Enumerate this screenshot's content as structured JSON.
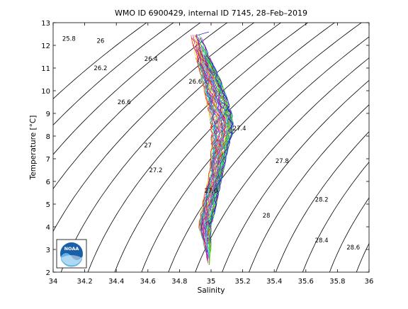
{
  "chart_data": {
    "type": "line",
    "title": "WMO ID 6900429, internal ID 7145, 28–Feb–2019",
    "xlabel": "Salinity",
    "ylabel": "Temperature [°C]",
    "xlim": [
      34,
      36
    ],
    "ylim": [
      2,
      13
    ],
    "xticks": [
      "34",
      "34.2",
      "34.4",
      "34.6",
      "34.8",
      "35",
      "35.2",
      "35.4",
      "35.6",
      "35.8",
      "36"
    ],
    "yticks": [
      "2",
      "3",
      "4",
      "5",
      "6",
      "7",
      "8",
      "9",
      "10",
      "11",
      "12",
      "13"
    ],
    "grid": false,
    "logo_text": "NOAA",
    "density_contours": [
      {
        "label": "25.8",
        "label_x": 34.1,
        "label_y": 12.3
      },
      {
        "label": "26",
        "label_x": 34.3,
        "label_y": 12.2
      },
      {
        "label": "26.2",
        "label_x": 34.3,
        "label_y": 11.0
      },
      {
        "label": "26.4",
        "label_x": 34.62,
        "label_y": 11.4
      },
      {
        "label": "26.6",
        "label_x": 34.9,
        "label_y": 10.4
      },
      {
        "label": "26.6",
        "label_x": 34.45,
        "label_y": 9.5
      },
      {
        "label": "26.8",
        "label_x": null,
        "label_y": null
      },
      {
        "label": "27",
        "label_x": 34.6,
        "label_y": 7.6
      },
      {
        "label": "27.2",
        "label_x": 34.65,
        "label_y": 6.5
      },
      {
        "label": "27.4",
        "label_x": 35.18,
        "label_y": 8.35
      },
      {
        "label": "27.6",
        "label_x": 35.0,
        "label_y": 5.6
      },
      {
        "label": "27.8",
        "label_x": 35.45,
        "label_y": 6.9
      },
      {
        "label": "28",
        "label_x": 35.35,
        "label_y": 4.5
      },
      {
        "label": "28.2",
        "label_x": 35.7,
        "label_y": 5.2
      },
      {
        "label": "28.4",
        "label_x": 35.7,
        "label_y": 3.4
      },
      {
        "label": "28.6",
        "label_x": 35.9,
        "label_y": 3.1
      }
    ],
    "profile_envelope": {
      "temperature": [
        12.5,
        11.5,
        10.5,
        9.5,
        8.8,
        8.2,
        7.5,
        6.5,
        5.5,
        4.5,
        4.0,
        3.0,
        2.3
      ],
      "salinity_min": [
        34.87,
        34.9,
        34.94,
        34.97,
        34.99,
        35.0,
        35.0,
        34.99,
        34.96,
        34.93,
        34.92,
        34.96,
        34.98
      ],
      "salinity_max": [
        34.93,
        34.99,
        35.06,
        35.11,
        35.14,
        35.14,
        35.11,
        35.08,
        35.05,
        35.02,
        35.0,
        35.0,
        34.99
      ]
    },
    "profile_count": 60
  }
}
